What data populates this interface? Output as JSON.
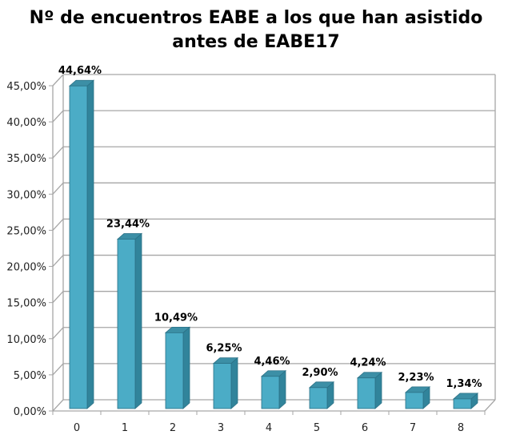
{
  "chart_data": {
    "type": "bar",
    "title": "Nº de encuentros EABE a los que han asistido antes de EABE17",
    "categories": [
      "0",
      "1",
      "2",
      "3",
      "4",
      "5",
      "6",
      "7",
      "8"
    ],
    "values": [
      44.64,
      23.44,
      10.49,
      6.25,
      4.46,
      2.9,
      4.24,
      2.23,
      1.34
    ],
    "data_labels": [
      "44,64%",
      "23,44%",
      "10,49%",
      "6,25%",
      "4,46%",
      "2,90%",
      "4,24%",
      "2,23%",
      "1,34%"
    ],
    "yticks": [
      "0,00%",
      "5,00%",
      "10,00%",
      "15,00%",
      "20,00%",
      "25,00%",
      "30,00%",
      "35,00%",
      "40,00%",
      "45,00%"
    ],
    "ylim": [
      0,
      45
    ],
    "grid": true,
    "bar_style": "3d-column",
    "colors": {
      "bar_front": "#4BACC6",
      "bar_side": "#31849B",
      "bar_top": "#3C8FA6",
      "grid": "#A6A6A6"
    }
  }
}
